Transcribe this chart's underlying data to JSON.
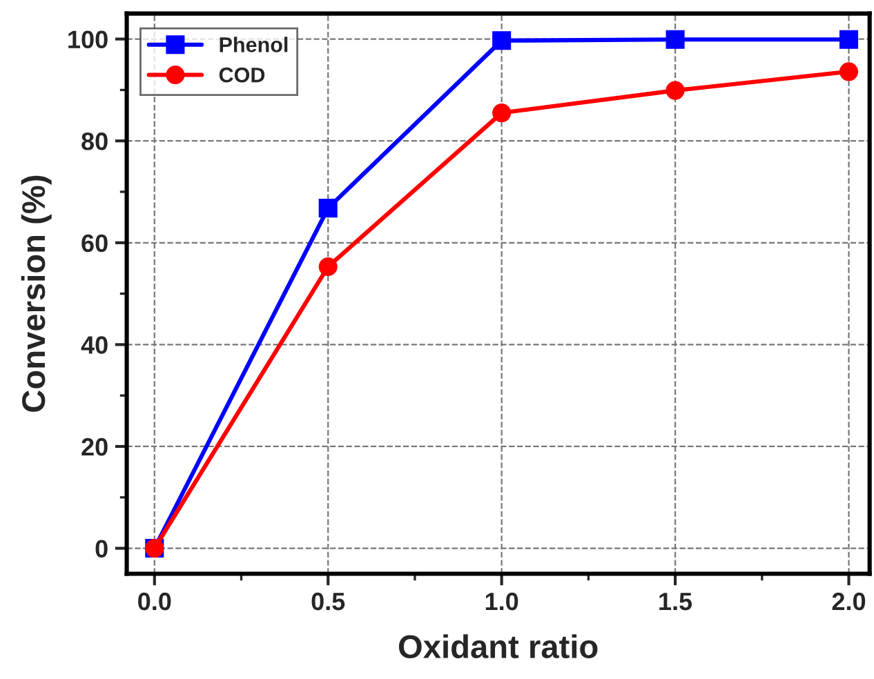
{
  "chart_data": {
    "type": "line",
    "xlabel": "Oxidant ratio",
    "ylabel": "Conversion (%)",
    "x": [
      0.0,
      0.5,
      1.0,
      1.5,
      2.0
    ],
    "series": [
      {
        "name": "Phenol",
        "color": "#0000ff",
        "marker": "square",
        "values": [
          0,
          66.8,
          99.7,
          99.9,
          99.9
        ]
      },
      {
        "name": "COD",
        "color": "#ff0000",
        "marker": "circle",
        "values": [
          0,
          55.3,
          85.5,
          89.9,
          93.6
        ]
      }
    ],
    "xlim": [
      -0.08,
      2.06
    ],
    "xticks": [
      {
        "value": 0.0,
        "label": "0.0"
      },
      {
        "value": 0.5,
        "label": "0.5"
      },
      {
        "value": 1.0,
        "label": "1.0"
      },
      {
        "value": 1.5,
        "label": "1.5"
      },
      {
        "value": 2.0,
        "label": "2.0"
      }
    ],
    "ylim": [
      -5,
      105
    ],
    "yticks": [
      0,
      20,
      40,
      60,
      80,
      100
    ],
    "grid": true,
    "legend": "top left",
    "line_style": "solid"
  }
}
